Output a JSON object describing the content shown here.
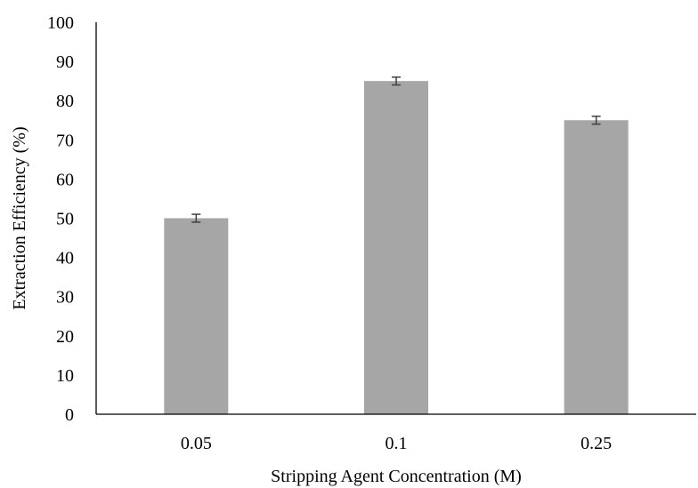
{
  "chart_data": {
    "type": "bar",
    "title": "",
    "xlabel": "Stripping Agent Concentration (M)",
    "ylabel": "Extraction Efficiency (%)",
    "categories": [
      "0.05",
      "0.1",
      "0.25"
    ],
    "values": [
      50,
      85,
      75
    ],
    "error": [
      1,
      1,
      1
    ],
    "ylim": [
      0,
      100
    ],
    "yticks": [
      "0",
      "10",
      "20",
      "30",
      "40",
      "50",
      "60",
      "70",
      "80",
      "90",
      "100"
    ],
    "grid": false,
    "legend": "none",
    "bar_color": "#a6a6a6",
    "error_color": "#404040"
  }
}
